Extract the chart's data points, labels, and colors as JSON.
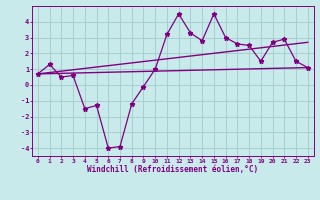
{
  "x": [
    0,
    1,
    2,
    3,
    4,
    5,
    6,
    7,
    8,
    9,
    10,
    11,
    12,
    13,
    14,
    15,
    16,
    17,
    18,
    19,
    20,
    21,
    22,
    23
  ],
  "y_main": [
    0.7,
    1.3,
    0.5,
    0.6,
    -1.5,
    -1.3,
    -4.0,
    -3.9,
    -1.2,
    -0.1,
    1.0,
    3.2,
    4.5,
    3.3,
    2.8,
    4.5,
    3.0,
    2.6,
    2.5,
    1.5,
    2.7,
    2.9,
    1.5,
    1.1
  ],
  "trend1_x": [
    0,
    23
  ],
  "trend1_y": [
    0.7,
    1.1
  ],
  "trend2_x": [
    0,
    23
  ],
  "trend2_y": [
    0.7,
    2.7
  ],
  "line_color": "#800080",
  "bg_color": "#c8eaea",
  "grid_color": "#a0cccc",
  "xlabel": "Windchill (Refroidissement éolien,°C)",
  "xlim": [
    -0.5,
    23.5
  ],
  "ylim": [
    -4.5,
    5.0
  ],
  "yticks": [
    -4,
    -3,
    -2,
    -1,
    0,
    1,
    2,
    3,
    4
  ],
  "xticks": [
    0,
    1,
    2,
    3,
    4,
    5,
    6,
    7,
    8,
    9,
    10,
    11,
    12,
    13,
    14,
    15,
    16,
    17,
    18,
    19,
    20,
    21,
    22,
    23
  ]
}
